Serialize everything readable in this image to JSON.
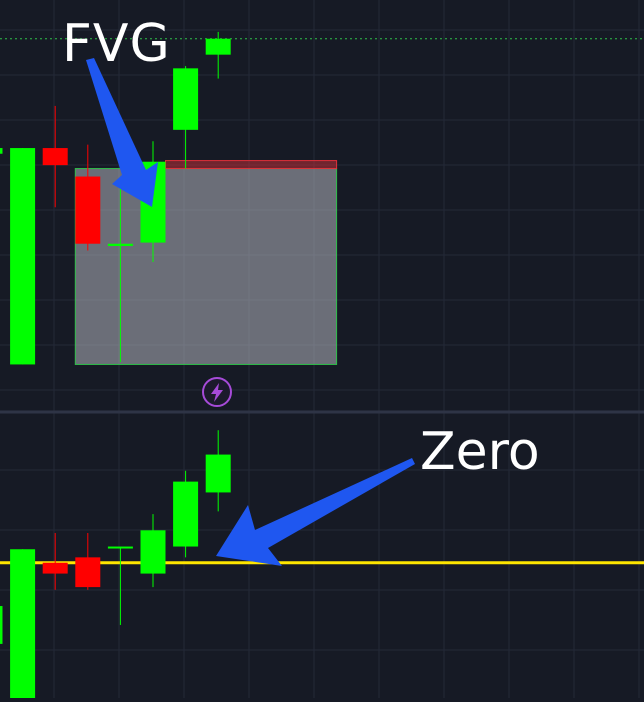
{
  "colors": {
    "background": "#161a25",
    "grid": "#242938",
    "pane_divider": "#2e3446",
    "bull": "#00ff00",
    "bear": "#ff0000",
    "fvg_box_fill": "#b2b5be",
    "fvg_box_border": "#2fbf4a",
    "fvg_band": "#e0303a",
    "zero_line": "#ffe600",
    "arrow": "#1f57f0",
    "alert_icon": "#a64bd8",
    "dotted_level": "#2fbf4a"
  },
  "annotations": {
    "fvg": "FVG",
    "zero": "Zero"
  },
  "icons": {
    "alert": "lightning-bolt-icon"
  },
  "chart_data": [
    {
      "type": "candlestick",
      "pane": "price",
      "candles": [
        {
          "o": 118.5,
          "h": 120.4,
          "l": 100,
          "c": 119.0
        },
        {
          "o": 100,
          "h": 119.0,
          "l": 100,
          "c": 119.0
        },
        {
          "o": 119.0,
          "h": 122.7,
          "l": 113.8,
          "c": 117.5
        },
        {
          "o": 116.5,
          "h": 119.3,
          "l": 110.0,
          "c": 110.6
        },
        {
          "o": 110.4,
          "h": 116.0,
          "l": 100.2,
          "c": 110.6
        },
        {
          "o": 110.7,
          "h": 119.6,
          "l": 109.0,
          "c": 117.8
        },
        {
          "o": 120.6,
          "h": 126.2,
          "l": 117.2,
          "c": 126.0
        },
        {
          "o": 127.2,
          "h": 129.2,
          "l": 125.1,
          "c": 128.6
        }
      ],
      "fvg_zone": {
        "start_index": 3,
        "end_index": 11,
        "low": 100,
        "high": 117.2
      },
      "fvg_band": {
        "low": 117.2,
        "high": 117.9
      },
      "dotted_level": 128.6,
      "ylim": [
        96.0,
        132.0
      ],
      "grid": true
    },
    {
      "type": "candlestick",
      "pane": "oscillator",
      "candles": [
        {
          "o": -3.0,
          "h": -1.4,
          "l": -3.0,
          "c": -1.6
        },
        {
          "o": -6.0,
          "h": 0.5,
          "l": -6.0,
          "c": 0.5
        },
        {
          "o": 0.0,
          "h": 1.1,
          "l": -1.0,
          "c": -0.4
        },
        {
          "o": 0.2,
          "h": 1.1,
          "l": -1.0,
          "c": -0.9
        },
        {
          "o": 0.6,
          "h": 0.6,
          "l": -2.3,
          "c": 0.6
        },
        {
          "o": -0.4,
          "h": 1.8,
          "l": -0.9,
          "c": 1.2
        },
        {
          "o": 0.6,
          "h": 3.4,
          "l": 0.2,
          "c": 3.0
        },
        {
          "o": 2.6,
          "h": 4.9,
          "l": 1.9,
          "c": 4.0
        }
      ],
      "zero_level": 0,
      "ylim": [
        -5.0,
        5.5
      ],
      "grid": true
    }
  ]
}
